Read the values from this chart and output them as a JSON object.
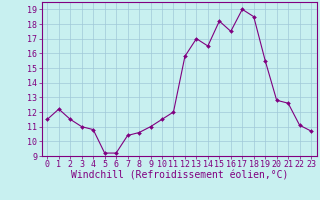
{
  "x": [
    0,
    1,
    2,
    3,
    4,
    5,
    6,
    7,
    8,
    9,
    10,
    11,
    12,
    13,
    14,
    15,
    16,
    17,
    18,
    19,
    20,
    21,
    22,
    23
  ],
  "y": [
    11.5,
    12.2,
    11.5,
    11.0,
    10.8,
    9.2,
    9.2,
    10.4,
    10.6,
    11.0,
    11.5,
    12.0,
    15.8,
    17.0,
    16.5,
    18.2,
    17.5,
    19.0,
    18.5,
    15.5,
    12.8,
    12.6,
    11.1,
    10.7
  ],
  "line_color": "#800080",
  "marker_color": "#800080",
  "bg_color": "#c8f0f0",
  "grid_color": "#a0c8d8",
  "xlabel": "Windchill (Refroidissement éolien,°C)",
  "xlim": [
    -0.5,
    23.5
  ],
  "ylim": [
    9,
    19.5
  ],
  "yticks": [
    9,
    10,
    11,
    12,
    13,
    14,
    15,
    16,
    17,
    18,
    19
  ],
  "xticks": [
    0,
    1,
    2,
    3,
    4,
    5,
    6,
    7,
    8,
    9,
    10,
    11,
    12,
    13,
    14,
    15,
    16,
    17,
    18,
    19,
    20,
    21,
    22,
    23
  ],
  "tick_label_color": "#800080",
  "axis_color": "#800080",
  "font_family": "monospace",
  "xlabel_fontsize": 7.0,
  "tick_fontsize": 6.0
}
